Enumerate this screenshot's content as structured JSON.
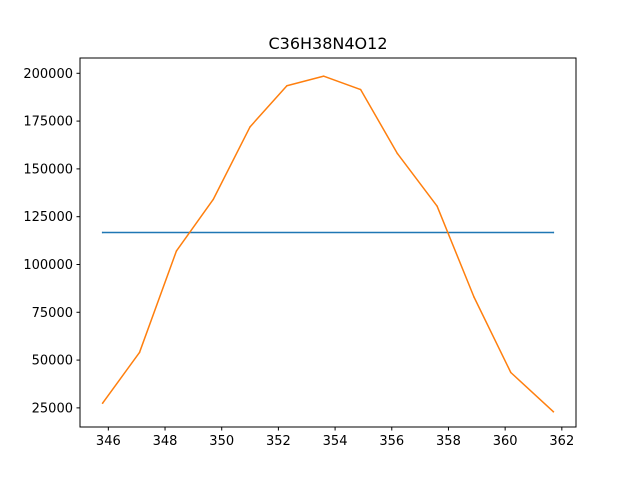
{
  "chart_data": {
    "type": "line",
    "title": "C36H38N4O12",
    "xlabel": "",
    "ylabel": "",
    "xlim": [
      345.0,
      362.5
    ],
    "ylim": [
      15000,
      208000
    ],
    "x_ticks": [
      346,
      348,
      350,
      352,
      354,
      356,
      358,
      360,
      362
    ],
    "y_ticks": [
      25000,
      50000,
      75000,
      100000,
      125000,
      150000,
      175000,
      200000
    ],
    "grid": false,
    "series": [
      {
        "color": "#1f77b4",
        "x": [
          345.8,
          361.7
        ],
        "y": [
          116700,
          116700
        ]
      },
      {
        "color": "#ff7f0e",
        "x": [
          345.8,
          347.1,
          348.4,
          349.7,
          351.0,
          352.3,
          353.6,
          354.9,
          356.2,
          357.6,
          358.9,
          360.2,
          361.7
        ],
        "y": [
          27500,
          54000,
          107000,
          134000,
          172000,
          193500,
          198500,
          191500,
          158000,
          130500,
          83000,
          43500,
          23000
        ]
      }
    ]
  }
}
